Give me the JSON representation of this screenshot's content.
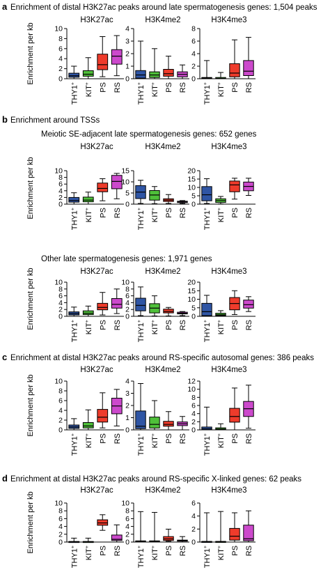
{
  "colors": {
    "THY1+": "#2f55a4",
    "KIT+": "#4fc03a",
    "PS": "#ee3b2b",
    "RS": "#cc49cc"
  },
  "ylabel": "Enrichment per kb",
  "panels": [
    {
      "letter": "a",
      "title": "Enrichment of distal H3K27ac peaks around late spermatogenesis genes: 1,504 peaks",
      "subtitle": ""
    },
    {
      "letter": "b",
      "title": "Enrichment around TSSs",
      "subtitle": "Meiotic SE-adjacent late spermatogenesis genes: 652 genes"
    },
    {
      "letter": "",
      "title": "",
      "subtitle": "Other late spermatogenesis genes: 1,971 genes"
    },
    {
      "letter": "c",
      "title": "Enrichment at distal H3K27ac peaks around RS-specific autosomal genes: 386 peaks",
      "subtitle": ""
    },
    {
      "letter": "d",
      "title": "Enrichment at distal H3K27ac peaks around RS-specific X-linked genes: 62 peaks",
      "subtitle": ""
    }
  ],
  "chart_data": [
    {
      "type": "box",
      "panel": "a",
      "title": "H3K27ac",
      "ylabel": "Enrichment per kb",
      "ylim": [
        0,
        10
      ],
      "yticks": [
        0,
        2,
        4,
        6,
        8,
        10
      ],
      "categories": [
        "THY1+",
        "KIT+",
        "PS",
        "RS"
      ],
      "boxes": [
        {
          "min": 0,
          "q1": 0.3,
          "median": 0.6,
          "q3": 1.1,
          "max": 2.5
        },
        {
          "min": 0,
          "q1": 0.5,
          "median": 0.9,
          "q3": 1.6,
          "max": 4.2
        },
        {
          "min": 0.4,
          "q1": 1.8,
          "median": 2.8,
          "q3": 4.9,
          "max": 8.4
        },
        {
          "min": 0.6,
          "q1": 2.9,
          "median": 4.5,
          "q3": 5.8,
          "max": 8.6
        }
      ]
    },
    {
      "type": "box",
      "panel": "a",
      "title": "H3K4me2",
      "ylabel": "",
      "ylim": [
        0,
        4
      ],
      "yticks": [
        0,
        1,
        2,
        3,
        4
      ],
      "categories": [
        "THY1+",
        "KIT+",
        "PS",
        "RS"
      ],
      "boxes": [
        {
          "min": 0,
          "q1": 0.05,
          "median": 0.3,
          "q3": 0.65,
          "max": 3.0
        },
        {
          "min": 0,
          "q1": 0.1,
          "median": 0.3,
          "q3": 0.55,
          "max": 2.4
        },
        {
          "min": 0,
          "q1": 0.2,
          "median": 0.4,
          "q3": 0.75,
          "max": 1.8
        },
        {
          "min": 0,
          "q1": 0.15,
          "median": 0.35,
          "q3": 0.55,
          "max": 1.1
        }
      ]
    },
    {
      "type": "box",
      "panel": "a",
      "title": "H3K4me3",
      "ylabel": "",
      "ylim": [
        0,
        8
      ],
      "yticks": [
        0,
        2,
        4,
        6,
        8
      ],
      "categories": [
        "THY1+",
        "KIT+",
        "PS",
        "RS"
      ],
      "boxes": [
        {
          "min": 0,
          "q1": 0,
          "median": 0.1,
          "q3": 0.2,
          "max": 2.9
        },
        {
          "min": 0,
          "q1": 0,
          "median": 0.05,
          "q3": 0.2,
          "max": 1.0
        },
        {
          "min": 0,
          "q1": 0.3,
          "median": 0.9,
          "q3": 2.4,
          "max": 6.2
        },
        {
          "min": 0,
          "q1": 0.5,
          "median": 1.2,
          "q3": 2.9,
          "max": 6.6
        }
      ]
    },
    {
      "type": "box",
      "panel": "b-top",
      "title": "H3K27ac",
      "ylabel": "Enrichment per kb",
      "ylim": [
        0,
        10
      ],
      "yticks": [
        0,
        2,
        4,
        6,
        8,
        10
      ],
      "categories": [
        "THY1+",
        "KIT+",
        "PS",
        "RS"
      ],
      "boxes": [
        {
          "min": 0,
          "q1": 0.6,
          "median": 1.1,
          "q3": 2.0,
          "max": 3.4
        },
        {
          "min": 0,
          "q1": 0.7,
          "median": 1.2,
          "q3": 2.1,
          "max": 3.6
        },
        {
          "min": 1.0,
          "q1": 3.7,
          "median": 4.7,
          "q3": 6.3,
          "max": 7.6
        },
        {
          "min": 1.6,
          "q1": 4.6,
          "median": 6.8,
          "q3": 8.6,
          "max": 9.2
        }
      ]
    },
    {
      "type": "box",
      "panel": "b-top",
      "title": "H3K4me2",
      "ylabel": "",
      "ylim": [
        0,
        15
      ],
      "yticks": [
        0,
        5,
        10,
        15
      ],
      "categories": [
        "THY1+",
        "KIT+",
        "PS",
        "RS"
      ],
      "boxes": [
        {
          "min": 0.3,
          "q1": 2.5,
          "median": 5.4,
          "q3": 8.3,
          "max": 10.7
        },
        {
          "min": 0.2,
          "q1": 1.8,
          "median": 4.1,
          "q3": 6.1,
          "max": 7.9
        },
        {
          "min": 0.3,
          "q1": 1.2,
          "median": 1.8,
          "q3": 2.4,
          "max": 4.3
        },
        {
          "min": 0.3,
          "q1": 0.7,
          "median": 1.0,
          "q3": 1.3,
          "max": 1.6
        }
      ]
    },
    {
      "type": "box",
      "panel": "b-top",
      "title": "H3K4me3",
      "ylabel": "",
      "ylim": [
        0,
        20
      ],
      "yticks": [
        0,
        5,
        10,
        15,
        20
      ],
      "categories": [
        "THY1+",
        "KIT+",
        "PS",
        "RS"
      ],
      "boxes": [
        {
          "min": 0.4,
          "q1": 2.0,
          "median": 5.6,
          "q3": 10.5,
          "max": 15.2
        },
        {
          "min": 0.1,
          "q1": 1.0,
          "median": 2.1,
          "q3": 3.2,
          "max": 4.6
        },
        {
          "min": 3.0,
          "q1": 7.4,
          "median": 11.5,
          "q3": 13.8,
          "max": 15.5
        },
        {
          "min": 5.2,
          "q1": 8.0,
          "median": 10.6,
          "q3": 13.2,
          "max": 15.5
        }
      ]
    },
    {
      "type": "box",
      "panel": "b-bottom",
      "title": "H3K27ac",
      "ylabel": "Enrichment per kb",
      "ylim": [
        0,
        10
      ],
      "yticks": [
        0,
        2,
        4,
        6,
        8,
        10
      ],
      "categories": [
        "THY1+",
        "KIT+",
        "PS",
        "RS"
      ],
      "boxes": [
        {
          "min": 0,
          "q1": 0.4,
          "median": 0.8,
          "q3": 1.3,
          "max": 2.7
        },
        {
          "min": 0,
          "q1": 0.5,
          "median": 0.9,
          "q3": 1.6,
          "max": 3.0
        },
        {
          "min": 0.4,
          "q1": 1.9,
          "median": 2.6,
          "q3": 3.8,
          "max": 7.0
        },
        {
          "min": 0.8,
          "q1": 2.4,
          "median": 3.5,
          "q3": 5.2,
          "max": 8.0
        }
      ]
    },
    {
      "type": "box",
      "panel": "b-bottom",
      "title": "H3K4me2",
      "ylabel": "",
      "ylim": [
        0,
        10
      ],
      "yticks": [
        0,
        2,
        4,
        6,
        8,
        10
      ],
      "categories": [
        "THY1+",
        "KIT+",
        "PS",
        "RS"
      ],
      "boxes": [
        {
          "min": 0.2,
          "q1": 1.6,
          "median": 3.2,
          "q3": 5.3,
          "max": 8.6
        },
        {
          "min": 0.1,
          "q1": 1.0,
          "median": 2.4,
          "q3": 3.7,
          "max": 6.0
        },
        {
          "min": 0.1,
          "q1": 1.0,
          "median": 1.4,
          "q3": 2.1,
          "max": 2.6
        },
        {
          "min": 0.2,
          "q1": 0.7,
          "median": 0.9,
          "q3": 1.2,
          "max": 1.4
        }
      ]
    },
    {
      "type": "box",
      "panel": "b-bottom",
      "title": "H3K4me3",
      "ylabel": "",
      "ylim": [
        0,
        20
      ],
      "yticks": [
        0,
        5,
        10,
        15,
        20
      ],
      "categories": [
        "THY1+",
        "KIT+",
        "PS",
        "RS"
      ],
      "boxes": [
        {
          "min": 0,
          "q1": 0.4,
          "median": 2.7,
          "q3": 7.6,
          "max": 12.3
        },
        {
          "min": 0,
          "q1": 0.4,
          "median": 0.9,
          "q3": 1.8,
          "max": 3.3
        },
        {
          "min": 1.0,
          "q1": 3.8,
          "median": 7.5,
          "q3": 11.0,
          "max": 15.0
        },
        {
          "min": 2.8,
          "q1": 4.8,
          "median": 6.8,
          "q3": 9.5,
          "max": 11.5
        }
      ]
    },
    {
      "type": "box",
      "panel": "c",
      "title": "H3K27ac",
      "ylabel": "Enrichment per kb",
      "ylim": [
        0,
        10
      ],
      "yticks": [
        0,
        2,
        4,
        6,
        8,
        10
      ],
      "categories": [
        "THY1+",
        "KIT+",
        "PS",
        "RS"
      ],
      "boxes": [
        {
          "min": 0,
          "q1": 0.3,
          "median": 0.6,
          "q3": 1.0,
          "max": 2.3
        },
        {
          "min": 0,
          "q1": 0.4,
          "median": 0.8,
          "q3": 1.5,
          "max": 4.1
        },
        {
          "min": 0.4,
          "q1": 1.6,
          "median": 2.6,
          "q3": 4.2,
          "max": 7.6
        },
        {
          "min": 0.8,
          "q1": 3.3,
          "median": 4.9,
          "q3": 6.5,
          "max": 8.3
        }
      ]
    },
    {
      "type": "box",
      "panel": "c",
      "title": "H3K4me2",
      "ylabel": "",
      "ylim": [
        0,
        4
      ],
      "yticks": [
        0,
        1,
        2,
        3,
        4
      ],
      "categories": [
        "THY1+",
        "KIT+",
        "PS",
        "RS"
      ],
      "boxes": [
        {
          "min": 0,
          "q1": 0.1,
          "median": 0.3,
          "q3": 1.55,
          "max": 3.8
        },
        {
          "min": 0,
          "q1": 0.15,
          "median": 0.45,
          "q3": 1.05,
          "max": 2.4
        },
        {
          "min": 0,
          "q1": 0.3,
          "median": 0.45,
          "q3": 0.7,
          "max": 1.5
        },
        {
          "min": 0,
          "q1": 0.35,
          "median": 0.5,
          "q3": 0.65,
          "max": 1.1
        }
      ]
    },
    {
      "type": "box",
      "panel": "c",
      "title": "H3K4me3",
      "ylabel": "",
      "ylim": [
        0,
        12
      ],
      "yticks": [
        0,
        2,
        4,
        6,
        8,
        10,
        12
      ],
      "categories": [
        "THY1+",
        "KIT+",
        "PS",
        "RS"
      ],
      "boxes": [
        {
          "min": 0,
          "q1": 0,
          "median": 0.25,
          "q3": 0.7,
          "max": 5.6
        },
        {
          "min": 0,
          "q1": 0,
          "median": 0.2,
          "q3": 0.5,
          "max": 1.5
        },
        {
          "min": 0,
          "q1": 1.9,
          "median": 3.3,
          "q3": 5.3,
          "max": 10.3
        },
        {
          "min": 0.4,
          "q1": 3.3,
          "median": 5.2,
          "q3": 7.0,
          "max": 11.0
        }
      ]
    },
    {
      "type": "box",
      "panel": "d",
      "title": "H3K27ac",
      "ylabel": "Enrichment per kb",
      "ylim": [
        0,
        10
      ],
      "yticks": [
        0,
        2,
        4,
        6,
        8,
        10
      ],
      "categories": [
        "THY1+",
        "KIT+",
        "PS",
        "RS"
      ],
      "boxes": [
        {
          "min": 0,
          "q1": 0,
          "median": 0.05,
          "q3": 0.15,
          "max": 1.0
        },
        {
          "min": 0,
          "q1": 0,
          "median": 0.05,
          "q3": 0.15,
          "max": 1.0
        },
        {
          "min": 3.0,
          "q1": 4.3,
          "median": 4.9,
          "q3": 5.7,
          "max": 7.0
        },
        {
          "min": 0,
          "q1": 0.4,
          "median": 0.7,
          "q3": 1.8,
          "max": 4.4
        }
      ]
    },
    {
      "type": "box",
      "panel": "d",
      "title": "H3K4me2",
      "ylabel": "",
      "ylim": [
        0,
        10
      ],
      "yticks": [
        0,
        2,
        4,
        6,
        8,
        10
      ],
      "categories": [
        "THY1+",
        "KIT+",
        "PS",
        "RS"
      ],
      "boxes": [
        {
          "min": 0,
          "q1": 0.1,
          "median": 0.2,
          "q3": 0.3,
          "max": 7.8
        },
        {
          "min": 0,
          "q1": 0.1,
          "median": 0.2,
          "q3": 0.3,
          "max": 7.6
        },
        {
          "min": 0.2,
          "q1": 0.4,
          "median": 0.8,
          "q3": 1.4,
          "max": 3.3
        },
        {
          "min": 0,
          "q1": 0.25,
          "median": 0.4,
          "q3": 0.5,
          "max": 1.4
        }
      ]
    },
    {
      "type": "box",
      "panel": "d",
      "title": "H3K4me3",
      "ylabel": "",
      "ylim": [
        0,
        6
      ],
      "yticks": [
        0,
        2,
        4,
        6
      ],
      "categories": [
        "THY1+",
        "KIT+",
        "PS",
        "RS"
      ],
      "boxes": [
        {
          "min": 0,
          "q1": 0,
          "median": 0.05,
          "q3": 0.1,
          "max": 4.5
        },
        {
          "min": 0,
          "q1": 0,
          "median": 0.05,
          "q3": 0.1,
          "max": 4.7
        },
        {
          "min": 0,
          "q1": 0.3,
          "median": 0.9,
          "q3": 2.1,
          "max": 4.5
        },
        {
          "min": 0,
          "q1": 0.2,
          "median": 0.5,
          "q3": 2.6,
          "max": 4.8
        }
      ]
    }
  ]
}
